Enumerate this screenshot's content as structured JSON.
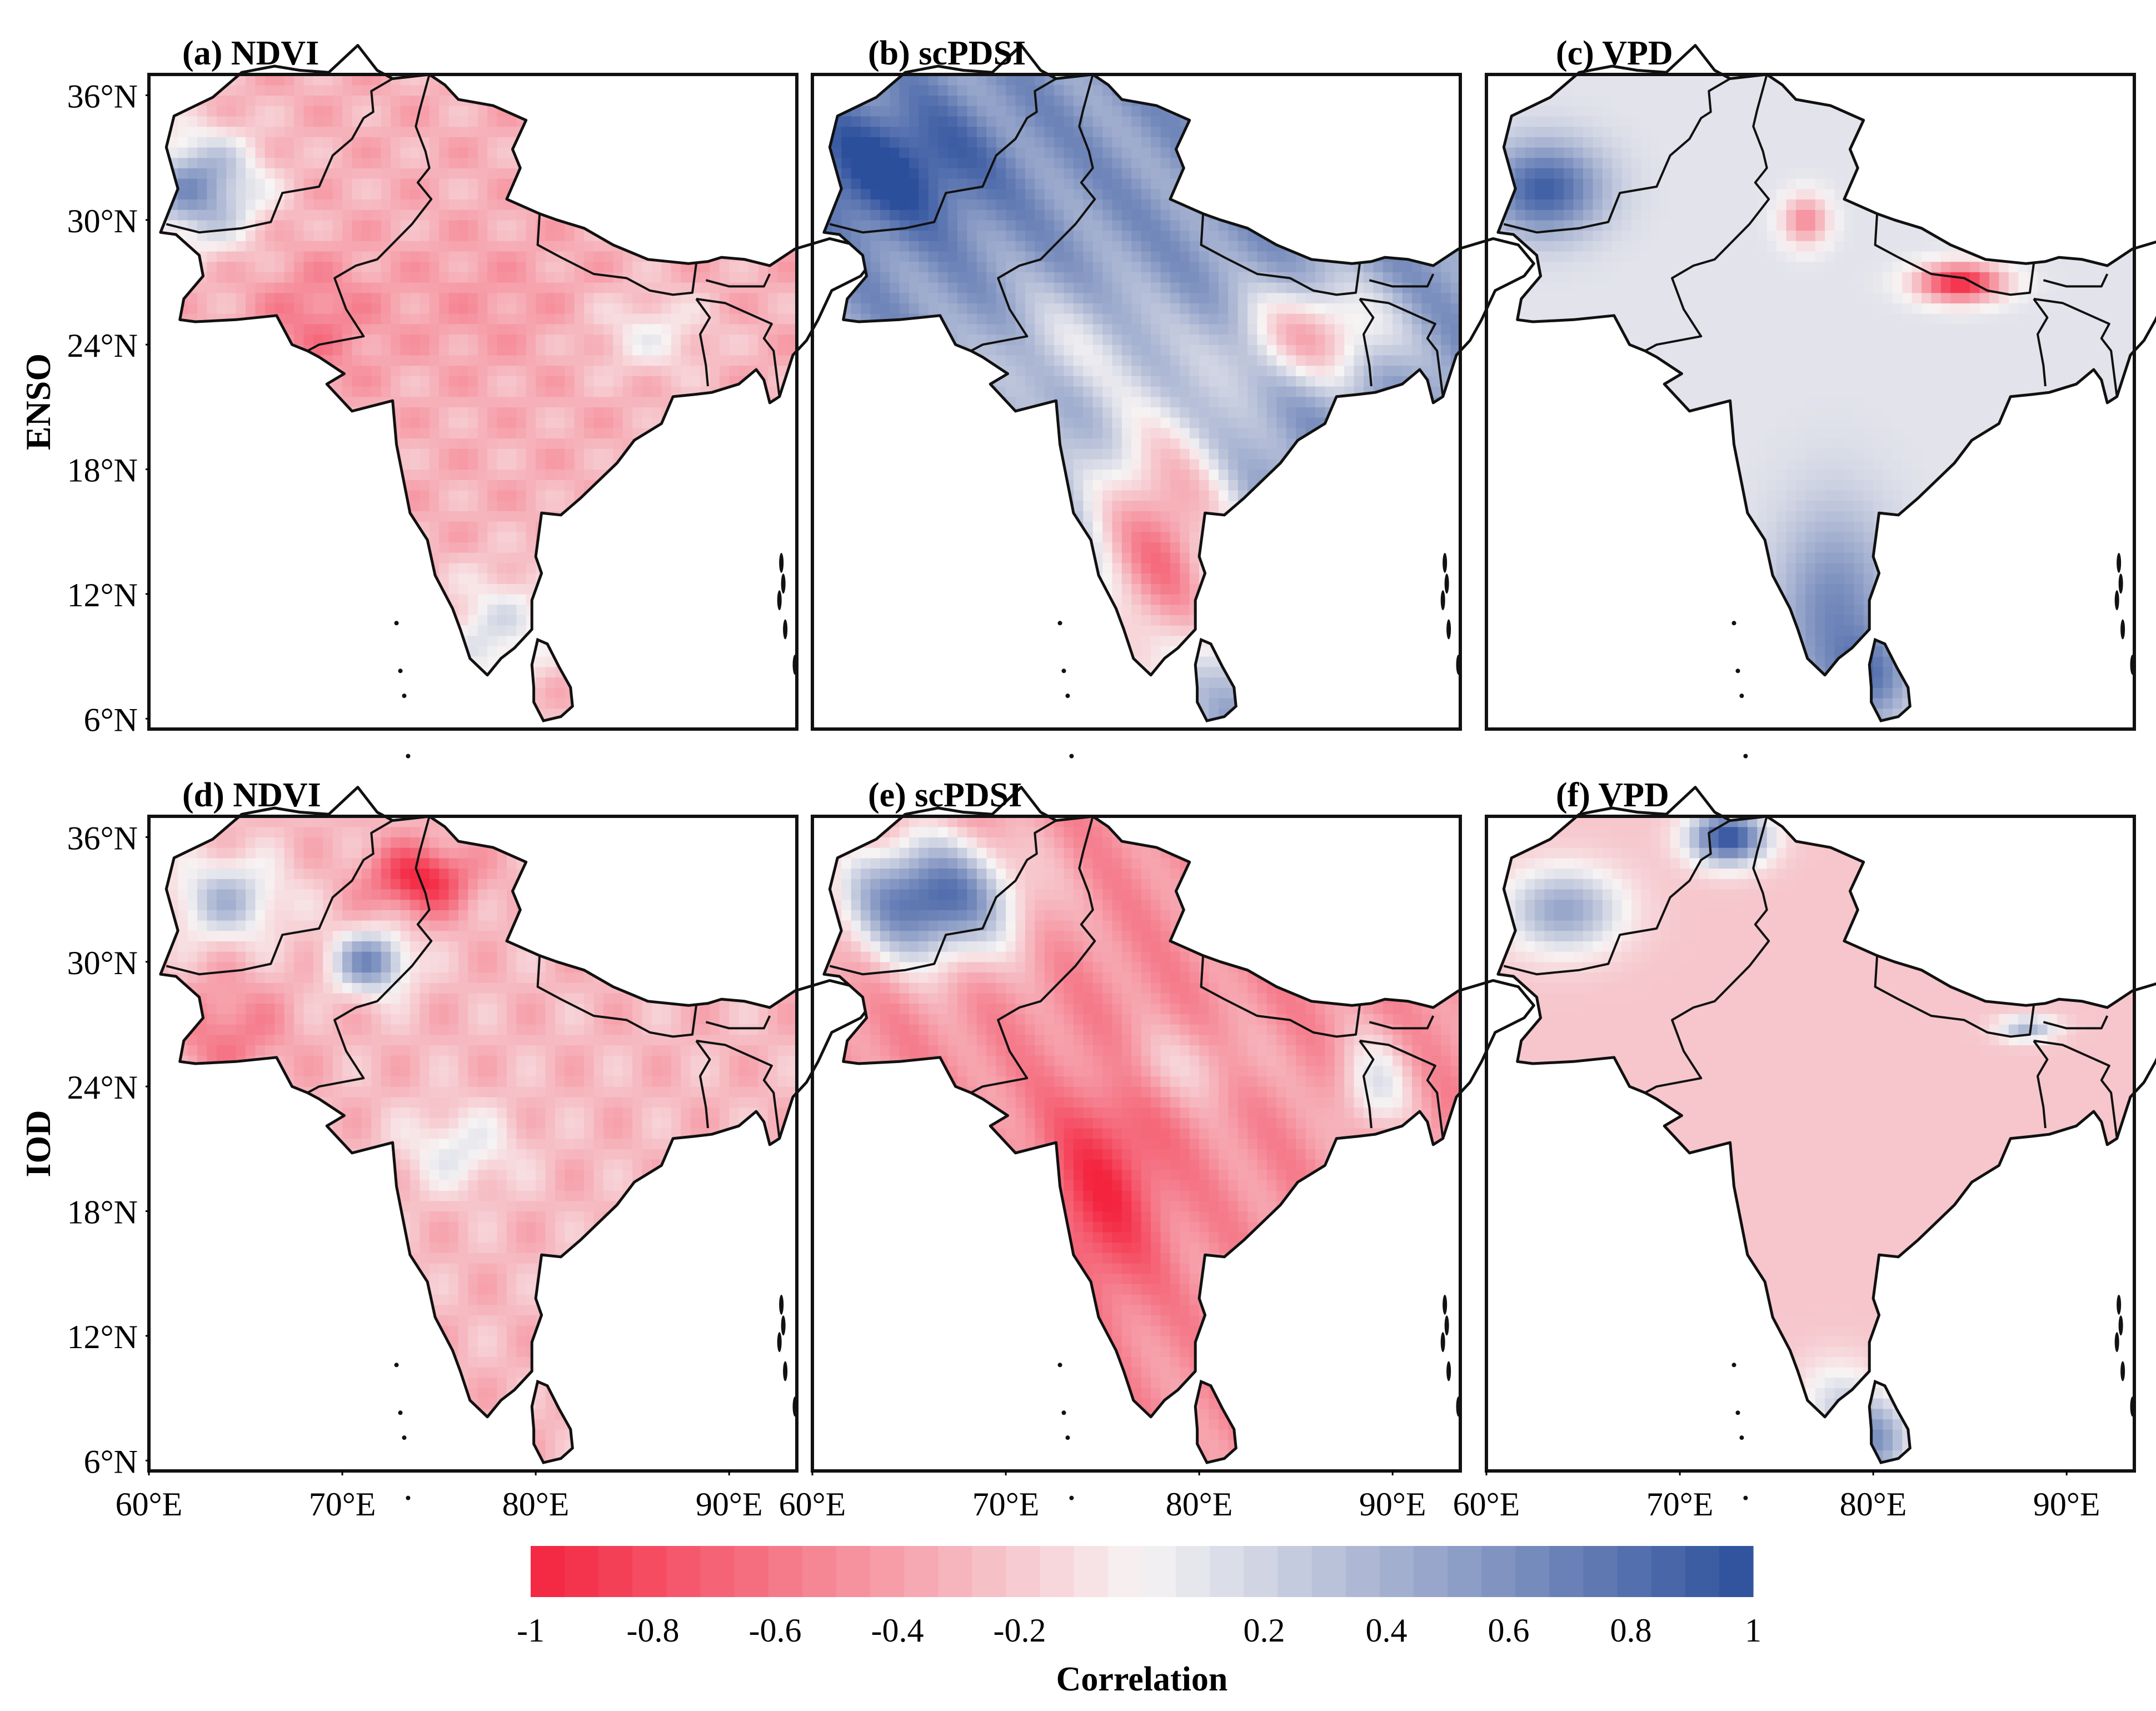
{
  "rows": [
    {
      "label": "ENSO",
      "panels": [
        {
          "title": "(a) NDVI",
          "field": "ndvi_enso"
        },
        {
          "title": "(b) scPDSI",
          "field": "pdsi_enso"
        },
        {
          "title": "(c) VPD",
          "field": "vpd_enso"
        }
      ]
    },
    {
      "label": "IOD",
      "panels": [
        {
          "title": "(d) NDVI",
          "field": "ndvi_iod"
        },
        {
          "title": "(e) scPDSI",
          "field": "pdsi_iod"
        },
        {
          "title": "(f) VPD",
          "field": "vpd_iod"
        }
      ]
    }
  ],
  "lat_ticks": [
    "36°N",
    "30°N",
    "24°N",
    "18°N",
    "12°N",
    "6°N"
  ],
  "lat_values": [
    36,
    30,
    24,
    18,
    12,
    6
  ],
  "lon_ticks": [
    "60°E",
    "70°E",
    "80°E",
    "90°E"
  ],
  "lon_values": [
    60,
    70,
    80,
    90
  ],
  "map_extent": {
    "lon_min": 60,
    "lon_max": 93.5,
    "lat_min": 5.5,
    "lat_max": 37
  },
  "colorbar": {
    "label": "Correlation",
    "tick_labels": [
      "-1",
      "-0.8",
      "-0.6",
      "-0.4",
      "-0.2",
      "0.2",
      "0.4",
      "0.6",
      "0.8",
      "1"
    ],
    "tick_values": [
      -1,
      -0.8,
      -0.6,
      -0.4,
      -0.2,
      0.2,
      0.4,
      0.6,
      0.8,
      1
    ],
    "range": [
      -1,
      1
    ],
    "n_bins": 36,
    "colors": [
      "#f4233e",
      "#f7f4f4",
      "#2c4f9c"
    ]
  }
}
